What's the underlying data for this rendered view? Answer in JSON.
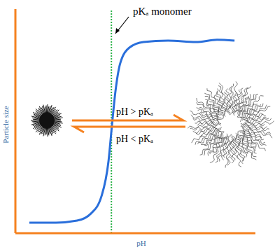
{
  "chart_data": {
    "type": "line",
    "x_label": "pH",
    "y_label": "Particle size",
    "xlim": [
      0,
      10
    ],
    "ylim": [
      0,
      10
    ],
    "tick_labels": false,
    "grid": false,
    "x": [
      0.58,
      1.69,
      2.57,
      3.15,
      3.59,
      3.88,
      4.02,
      4.17,
      4.37,
      4.75,
      5.34,
      6.36,
      7.52,
      8.4,
      9.13
    ],
    "values": [
      0.47,
      0.47,
      0.56,
      0.88,
      1.66,
      3.22,
      4.78,
      6.34,
      7.59,
      8.28,
      8.53,
      8.59,
      8.53,
      8.63,
      8.59
    ],
    "color": "#2a6fdb",
    "line_style": "solid",
    "marker": "none",
    "reference_lines": [
      {
        "x": 4.0,
        "label": "pKₐ monomer",
        "color": "#2db34a",
        "line_style": "dotted"
      }
    ],
    "annotations": [
      "pH > pKₐ",
      "pH < pKₐ"
    ]
  }
}
